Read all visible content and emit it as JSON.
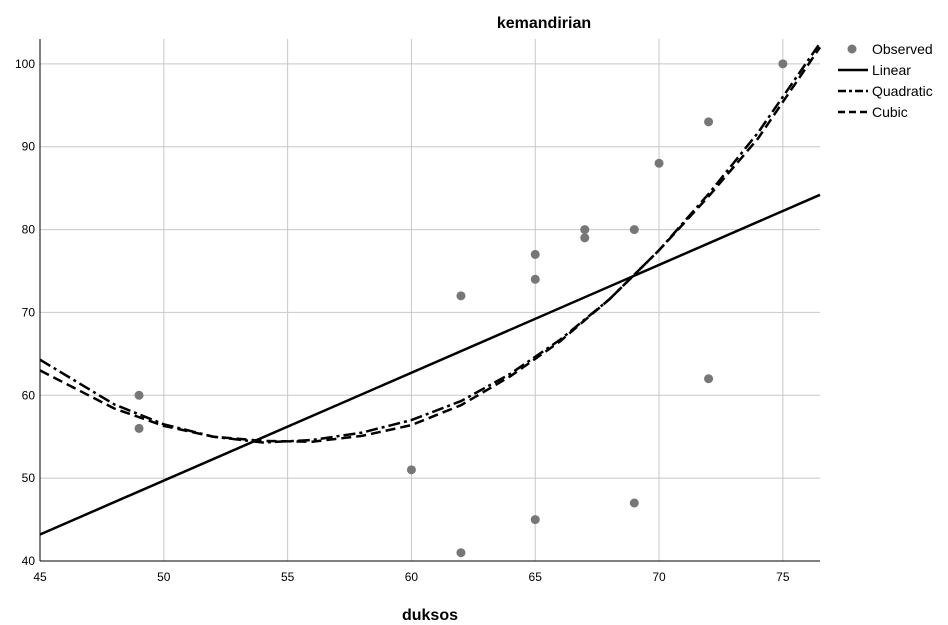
{
  "chart_data": {
    "type": "scatter",
    "title": "kemandirian",
    "xlabel": "duksos",
    "ylabel": "",
    "xlim": [
      45,
      76.5
    ],
    "ylim": [
      40,
      103
    ],
    "xticks": [
      45,
      50,
      55,
      60,
      65,
      70,
      75
    ],
    "yticks": [
      40,
      50,
      60,
      70,
      80,
      90,
      100
    ],
    "grid": true,
    "legend_position": "top-right",
    "observed": {
      "name": "Observed",
      "color": "#777777",
      "x": [
        49,
        49,
        60,
        62,
        62,
        65,
        65,
        65,
        67,
        67,
        69,
        69,
        70,
        72,
        72,
        75
      ],
      "y": [
        60,
        56,
        51,
        72,
        41,
        77,
        74,
        45,
        80,
        79,
        80,
        47,
        88,
        93,
        62,
        100
      ]
    },
    "fits": [
      {
        "name": "Linear",
        "style": "solid",
        "x": [
          45,
          76.5
        ],
        "y": [
          43.2,
          84.2
        ]
      },
      {
        "name": "Quadratic",
        "style": "dash-dot",
        "x": [
          45,
          48,
          50,
          52,
          54,
          56,
          58,
          60,
          62,
          64,
          66,
          68,
          70,
          72,
          74,
          76.5
        ],
        "y": [
          64.3,
          58.9,
          56.5,
          55.0,
          54.3,
          54.6,
          55.5,
          57.0,
          59.3,
          62.6,
          66.7,
          71.6,
          77.5,
          84.3,
          91.7,
          102.5
        ]
      },
      {
        "name": "Cubic",
        "style": "dashed",
        "x": [
          45,
          48,
          50,
          52,
          54,
          56,
          58,
          60,
          62,
          64,
          66,
          68,
          70,
          72,
          74,
          76.5
        ],
        "y": [
          63.0,
          58.4,
          56.3,
          55.0,
          54.5,
          54.4,
          55.1,
          56.4,
          58.8,
          62.3,
          66.5,
          71.6,
          77.5,
          84.0,
          91.0,
          102.0
        ]
      }
    ]
  }
}
